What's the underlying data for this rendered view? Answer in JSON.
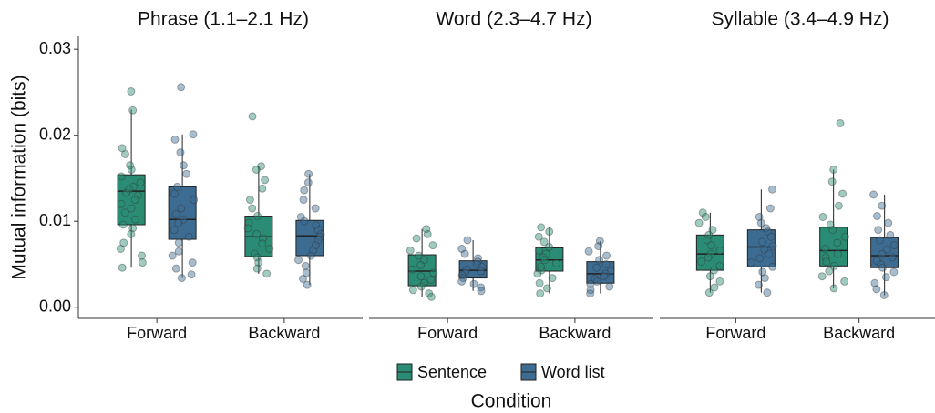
{
  "chart_data": {
    "type": "box",
    "ylabel": "Mutual information (bits)",
    "xlabel": "Condition",
    "ylim": [
      -0.0013,
      0.0315
    ],
    "yticks": [
      {
        "value": 0,
        "label": "0.00"
      },
      {
        "value": 0.01,
        "label": "0.01"
      },
      {
        "value": 0.02,
        "label": "0.02"
      },
      {
        "value": 0.03,
        "label": "0.03"
      }
    ],
    "categories": [
      "Forward",
      "Backward"
    ],
    "series": [
      {
        "name": "Sentence",
        "color": "#2a8c74"
      },
      {
        "name": "Word list",
        "color": "#3d6c92"
      }
    ],
    "facets": [
      {
        "title": "Phrase (1.1–2.1 Hz)",
        "data": [
          [
            {
              "min": 0.0046,
              "q1": 0.0096,
              "median": 0.0135,
              "q3": 0.0154,
              "max": 0.023,
              "points": [
                0.0251,
                0.0229,
                0.0185,
                0.0178,
                0.0165,
                0.016,
                0.0152,
                0.0145,
                0.014,
                0.0137,
                0.0133,
                0.013,
                0.0125,
                0.012,
                0.0115,
                0.011,
                0.0102,
                0.0096,
                0.0092,
                0.0085,
                0.0075,
                0.0068,
                0.006,
                0.0052,
                0.0046
              ]
            },
            {
              "min": 0.0039,
              "q1": 0.0059,
              "median": 0.0082,
              "q3": 0.0106,
              "max": 0.0164,
              "points": [
                0.0222,
                0.0164,
                0.016,
                0.0148,
                0.0138,
                0.0125,
                0.0115,
                0.0106,
                0.0098,
                0.0092,
                0.0085,
                0.008,
                0.0074,
                0.0068,
                0.0062,
                0.0058,
                0.0052,
                0.0045,
                0.0039
              ]
            }
          ],
          [
            {
              "min": 0.0034,
              "q1": 0.0079,
              "median": 0.0102,
              "q3": 0.014,
              "max": 0.0201,
              "points": [
                0.0256,
                0.0201,
                0.0195,
                0.018,
                0.0165,
                0.0155,
                0.014,
                0.0132,
                0.0125,
                0.0115,
                0.0108,
                0.0102,
                0.0098,
                0.009,
                0.0082,
                0.0075,
                0.0065,
                0.006,
                0.0052,
                0.0045,
                0.0038,
                0.0034
              ]
            },
            {
              "min": 0.0026,
              "q1": 0.006,
              "median": 0.0083,
              "q3": 0.0101,
              "max": 0.0155,
              "points": [
                0.0155,
                0.0145,
                0.0136,
                0.0125,
                0.0115,
                0.0105,
                0.01,
                0.0095,
                0.009,
                0.0085,
                0.0082,
                0.0078,
                0.0072,
                0.0066,
                0.006,
                0.0055,
                0.0048,
                0.004,
                0.0033,
                0.0026
              ]
            }
          ]
        ]
      },
      {
        "title": "Word (2.3–4.7 Hz)",
        "data": [
          [
            {
              "min": 0.0012,
              "q1": 0.0025,
              "median": 0.0042,
              "q3": 0.0061,
              "max": 0.0091,
              "points": [
                0.0091,
                0.0085,
                0.008,
                0.0072,
                0.0066,
                0.006,
                0.0055,
                0.0049,
                0.0044,
                0.004,
                0.0036,
                0.0032,
                0.0028,
                0.0024,
                0.002,
                0.0016,
                0.0012
              ]
            },
            {
              "min": 0.0016,
              "q1": 0.0042,
              "median": 0.0055,
              "q3": 0.0069,
              "max": 0.0093,
              "points": [
                0.0093,
                0.0088,
                0.0082,
                0.0076,
                0.007,
                0.0066,
                0.0062,
                0.0058,
                0.0055,
                0.0051,
                0.0047,
                0.0043,
                0.0039,
                0.0034,
                0.0028,
                0.0022,
                0.0016
              ]
            }
          ],
          [
            {
              "min": 0.0019,
              "q1": 0.0034,
              "median": 0.0043,
              "q3": 0.0054,
              "max": 0.0078,
              "points": [
                0.0078,
                0.0068,
                0.0062,
                0.0057,
                0.0053,
                0.005,
                0.0047,
                0.0044,
                0.0042,
                0.004,
                0.0037,
                0.0034,
                0.003,
                0.0027,
                0.0023,
                0.0019
              ]
            },
            {
              "min": 0.0016,
              "q1": 0.0028,
              "median": 0.0039,
              "q3": 0.0053,
              "max": 0.0077,
              "points": [
                0.0077,
                0.0071,
                0.0065,
                0.006,
                0.0055,
                0.005,
                0.0046,
                0.0042,
                0.0039,
                0.0036,
                0.0033,
                0.003,
                0.0027,
                0.0024,
                0.002,
                0.0016
              ]
            }
          ]
        ]
      },
      {
        "title": "Syllable (3.4–4.9 Hz)",
        "data": [
          [
            {
              "min": 0.0017,
              "q1": 0.0043,
              "median": 0.0062,
              "q3": 0.0084,
              "max": 0.011,
              "points": [
                0.011,
                0.0105,
                0.0098,
                0.009,
                0.0084,
                0.0078,
                0.0072,
                0.0066,
                0.0062,
                0.0058,
                0.0053,
                0.0048,
                0.0043,
                0.0036,
                0.003,
                0.0023,
                0.0017
              ]
            },
            {
              "min": 0.0022,
              "q1": 0.0048,
              "median": 0.0066,
              "q3": 0.0093,
              "max": 0.016,
              "points": [
                0.0214,
                0.016,
                0.0146,
                0.0132,
                0.0118,
                0.0105,
                0.0096,
                0.009,
                0.0082,
                0.0075,
                0.0068,
                0.0062,
                0.0058,
                0.0053,
                0.0048,
                0.0042,
                0.0036,
                0.003,
                0.0022
              ]
            }
          ],
          [
            {
              "min": 0.0017,
              "q1": 0.0047,
              "median": 0.007,
              "q3": 0.009,
              "max": 0.0137,
              "points": [
                0.0137,
                0.0115,
                0.0105,
                0.0098,
                0.0092,
                0.0088,
                0.0082,
                0.0076,
                0.0071,
                0.0067,
                0.0062,
                0.0057,
                0.0052,
                0.0047,
                0.0041,
                0.0034,
                0.0026,
                0.0017
              ]
            },
            {
              "min": 0.0014,
              "q1": 0.0046,
              "median": 0.006,
              "q3": 0.0081,
              "max": 0.0131,
              "points": [
                0.0131,
                0.0118,
                0.0106,
                0.0098,
                0.009,
                0.0084,
                0.0078,
                0.0072,
                0.0067,
                0.0062,
                0.0058,
                0.0054,
                0.005,
                0.0046,
                0.0041,
                0.0035,
                0.0028,
                0.0021,
                0.0014
              ]
            }
          ]
        ]
      }
    ]
  }
}
